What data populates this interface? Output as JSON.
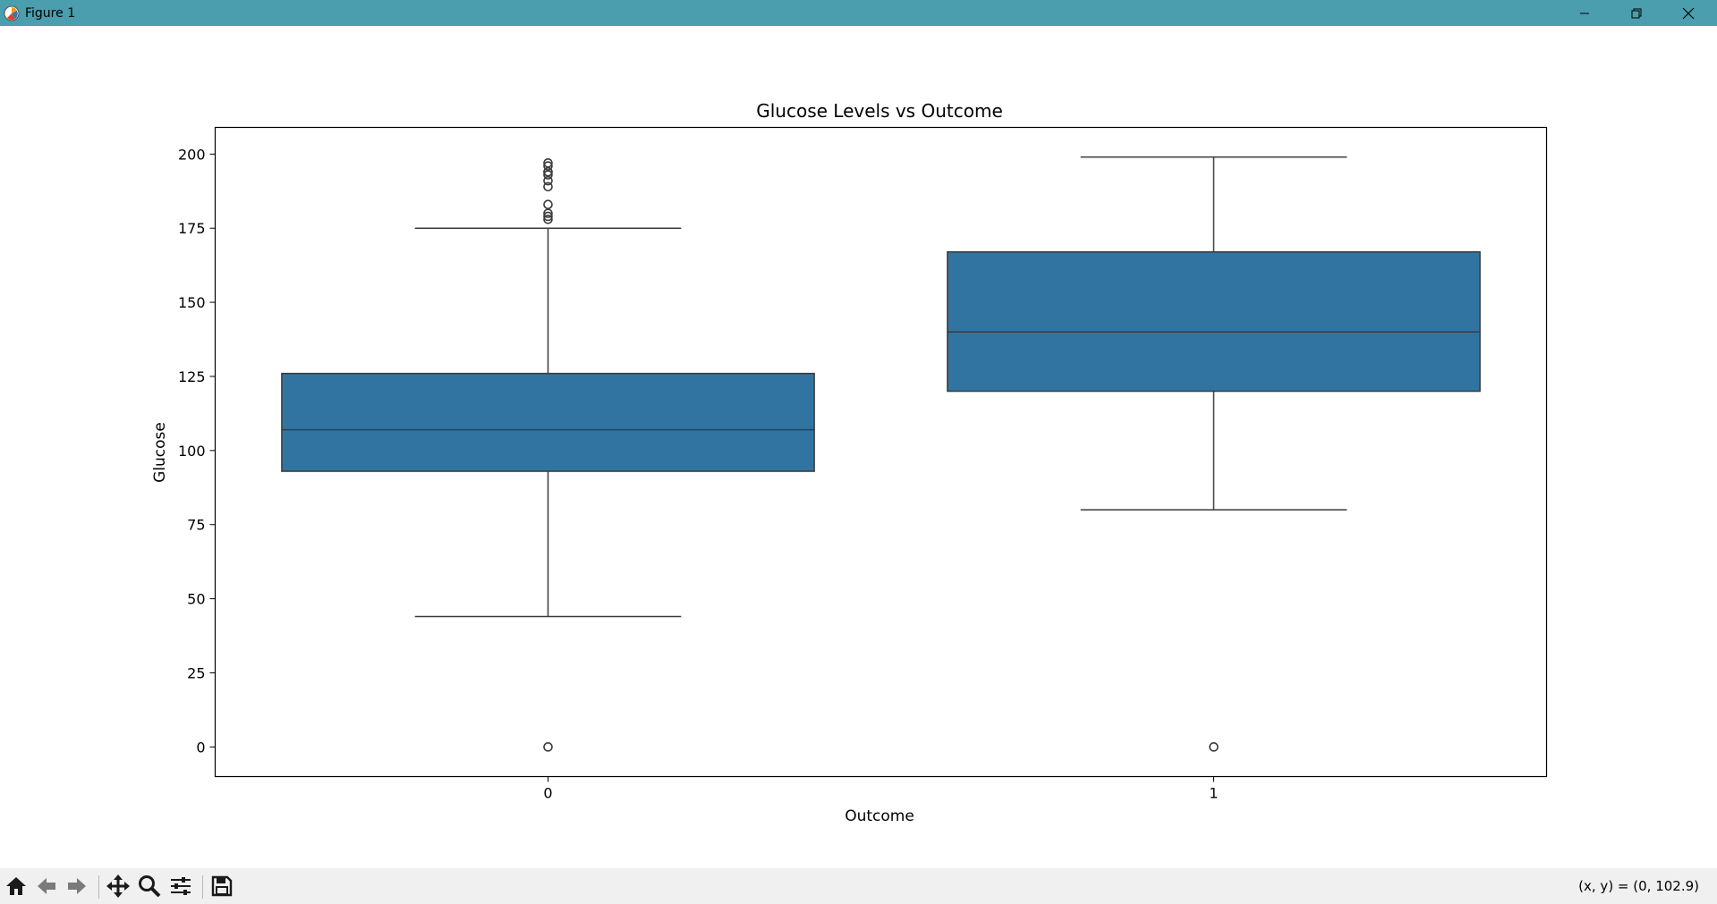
{
  "window": {
    "title": "Figure 1",
    "icons": {
      "app": "matplotlib-icon",
      "minimize": "minimize-icon",
      "maximize": "restore-icon",
      "close": "close-icon"
    }
  },
  "toolbar": {
    "items": [
      "home-icon",
      "back-icon",
      "forward-icon",
      "pan-icon",
      "zoom-icon",
      "configure-subplots-icon",
      "save-icon"
    ],
    "coords": "(x, y) = (0, 102.9)"
  },
  "colors": {
    "titlebar": "#4a9eae",
    "box_fill": "#3274a1",
    "lines": "#3a3a3a"
  },
  "chart_data": {
    "type": "box",
    "title": "Glucose Levels vs Outcome",
    "xlabel": "Outcome",
    "ylabel": "Glucose",
    "categories": [
      "0",
      "1"
    ],
    "ylim": [
      -10,
      209
    ],
    "yticks": [
      0,
      25,
      50,
      75,
      100,
      125,
      150,
      175,
      200
    ],
    "grid": false,
    "boxes": [
      {
        "category": "0",
        "whisker_low": 44,
        "q1": 93,
        "median": 107,
        "q3": 126,
        "whisker_high": 175,
        "outliers": [
          0,
          178,
          179,
          180,
          183,
          189,
          191,
          193,
          194,
          194,
          196,
          197
        ]
      },
      {
        "category": "1",
        "whisker_low": 80,
        "q1": 120,
        "median": 140,
        "q3": 167,
        "whisker_high": 199,
        "outliers": [
          0
        ]
      }
    ]
  }
}
